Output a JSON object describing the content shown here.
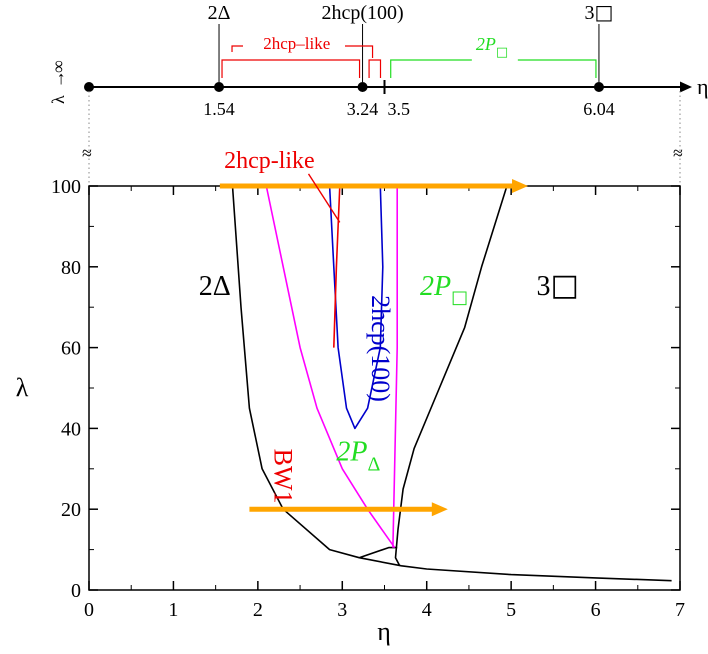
{
  "chart_data": {
    "type": "line",
    "xlabel": "η",
    "ylabel": "λ",
    "xlim": [
      0,
      7
    ],
    "ylim": [
      0,
      100
    ],
    "x_ticks": [
      "0",
      "1",
      "2",
      "3",
      "4",
      "5",
      "6",
      "7"
    ],
    "y_ticks": [
      "0",
      "20",
      "40",
      "60",
      "80",
      "100"
    ],
    "colors": {
      "axis": "#000000",
      "boundary": "#000000",
      "bw1": "#ff00ff",
      "hcp100": "#0000cc",
      "hcp_like": "#ee0000",
      "green": "#22dd22",
      "arrow": "#ffa500"
    },
    "boundaries": [
      {
        "name": "",
        "color": "#000000",
        "points": [
          [
            1.7,
            100
          ],
          [
            1.8,
            70
          ],
          [
            1.9,
            45
          ],
          [
            2.05,
            30
          ],
          [
            2.3,
            20
          ],
          [
            2.85,
            10
          ],
          [
            3.2,
            8
          ],
          [
            3.7,
            6
          ],
          [
            4.0,
            5.2
          ],
          [
            5.0,
            3.8
          ],
          [
            6.0,
            3.0
          ],
          [
            6.9,
            2.3
          ]
        ]
      },
      {
        "name": "",
        "color": "#000000",
        "points": [
          [
            4.95,
            100
          ],
          [
            4.65,
            80
          ],
          [
            4.45,
            65
          ],
          [
            4.15,
            50
          ],
          [
            3.85,
            35
          ],
          [
            3.72,
            25
          ],
          [
            3.66,
            15
          ],
          [
            3.63,
            8
          ],
          [
            3.68,
            6
          ]
        ]
      },
      {
        "name": "",
        "color": "#000000",
        "points": [
          [
            3.2,
            8
          ],
          [
            3.55,
            10.5
          ],
          [
            3.65,
            10.5
          ]
        ]
      },
      {
        "name": "",
        "color": "#ff00ff",
        "points": [
          [
            2.1,
            100
          ],
          [
            2.3,
            80
          ],
          [
            2.5,
            60
          ],
          [
            2.7,
            45
          ],
          [
            3.0,
            30
          ],
          [
            3.3,
            20
          ],
          [
            3.62,
            10.5
          ]
        ]
      },
      {
        "name": "",
        "color": "#ff00ff",
        "points": [
          [
            3.65,
            100
          ],
          [
            3.65,
            60
          ],
          [
            3.62,
            30
          ],
          [
            3.6,
            10.5
          ]
        ]
      },
      {
        "name": "",
        "color": "#0000cc",
        "points": [
          [
            2.85,
            100
          ],
          [
            2.9,
            80
          ],
          [
            2.95,
            60
          ],
          [
            3.05,
            45
          ],
          [
            3.15,
            40
          ],
          [
            3.3,
            45
          ],
          [
            3.45,
            60
          ],
          [
            3.48,
            80
          ],
          [
            3.45,
            100
          ]
        ]
      },
      {
        "name": "",
        "color": "#ee0000",
        "points": [
          [
            2.97,
            100
          ],
          [
            2.93,
            80
          ],
          [
            2.9,
            60
          ]
        ]
      }
    ],
    "arrows": [
      {
        "from": [
          1.55,
          100
        ],
        "to": [
          5.2,
          100
        ],
        "color": "#ffa500"
      },
      {
        "from": [
          1.9,
          20
        ],
        "to": [
          4.25,
          20
        ],
        "color": "#ffa500"
      }
    ],
    "annotations": {
      "delta2": {
        "text": "2Δ",
        "x": 1.3,
        "y": 73,
        "color": "#000000"
      },
      "square3": {
        "main": "3",
        "box": "□",
        "x": 5.3,
        "y": 73,
        "color": "#000000"
      },
      "p_square": {
        "main": "2P",
        "sub": "□",
        "x": 3.92,
        "y": 73,
        "color": "#22dd22"
      },
      "p_delta": {
        "main": "2P",
        "sub": "Δ",
        "x": 2.93,
        "y": 32,
        "color": "#22dd22"
      },
      "bw1": {
        "text": "BW1",
        "x": 2.2,
        "y": 35,
        "color": "#ee0000"
      },
      "hcp100": {
        "text": "2hcp(100)",
        "x": 3.35,
        "y": 73,
        "color": "#0000cc"
      },
      "hcp_like": {
        "text": "2hcp-like",
        "x": 1.6,
        "y": 104.5,
        "color": "#ee0000"
      }
    },
    "limit_line": {
      "label_main": "λ",
      "label_arrow": "→",
      "label_inf": "∞",
      "xlim": [
        0,
        7
      ],
      "axis_label": "η",
      "points": [
        {
          "x": 0,
          "label": ""
        },
        {
          "x": 1.54,
          "label": "1.54"
        },
        {
          "x": 3.24,
          "label": "3.24"
        },
        {
          "x": 6.04,
          "label": "6.04"
        }
      ],
      "minor_tick": {
        "x": 3.5,
        "label": "3.5"
      },
      "top_labels": [
        {
          "text": "2Δ",
          "x": 1.54
        },
        {
          "text": "2hcp(100)",
          "x": 3.24
        },
        {
          "main": "3",
          "box": "□",
          "x": 6.04
        }
      ],
      "bracket_hcp_like": {
        "text": "2hcp–like",
        "from": 1.54,
        "to": 3.24,
        "color": "#ee0000"
      },
      "bracket_red_small": {
        "from": 3.27,
        "to": 3.5,
        "color": "#ee0000"
      },
      "bracket_green": {
        "main": "2P",
        "sub": "□",
        "from": 3.55,
        "to": 6.04,
        "color": "#22dd22"
      },
      "break_mark": "≈"
    }
  }
}
